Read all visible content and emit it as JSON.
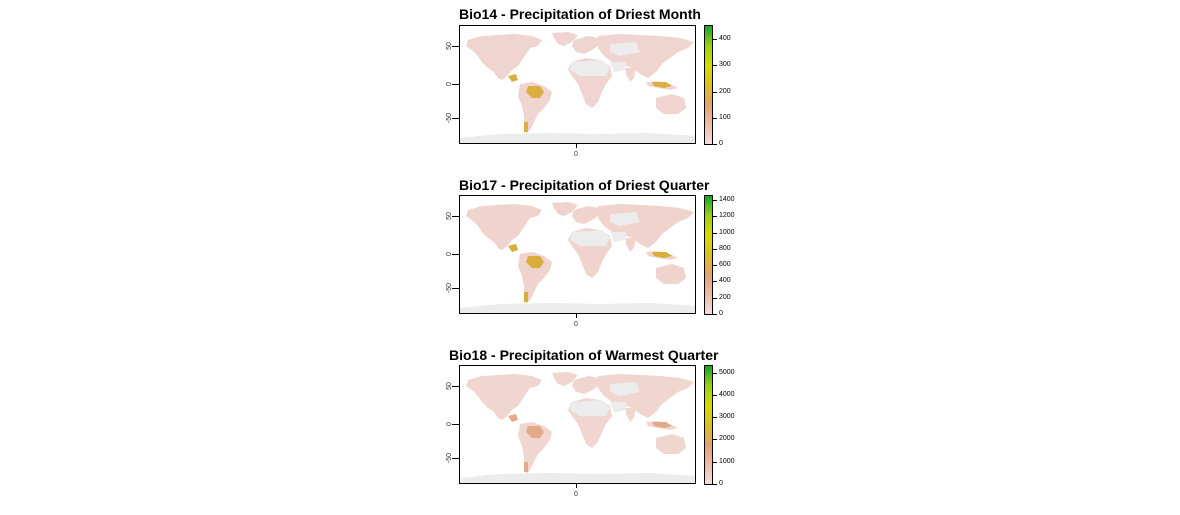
{
  "colors": {
    "ocean": "#ffffff",
    "land_nodata": "#ececec",
    "ramp": [
      "#f3dede",
      "#ebbba8",
      "#e3a272",
      "#d8c020",
      "#d4dd00",
      "#9ad015",
      "#16a52a"
    ]
  },
  "maps": [
    {
      "title": "Bio14 - Precipitation of Driest Month",
      "yticks": [
        "50",
        "0",
        "-50"
      ],
      "xticks": [
        "0"
      ],
      "legend": {
        "max": 450,
        "ticks": [
          "400",
          "300",
          "200",
          "100",
          "0"
        ],
        "values": [
          400,
          300,
          200,
          100,
          0
        ]
      }
    },
    {
      "title": "Bio17 - Precipitation of Driest Quarter",
      "yticks": [
        "50",
        "0",
        "-50"
      ],
      "xticks": [
        "0"
      ],
      "legend": {
        "max": 1450,
        "ticks": [
          "1400",
          "1200",
          "1000",
          "800",
          "600",
          "400",
          "200",
          "0"
        ],
        "values": [
          1400,
          1200,
          1000,
          800,
          600,
          400,
          200,
          0
        ]
      }
    },
    {
      "title": "Bio18 - Precipitation of Warmest Quarter",
      "yticks": [
        "50",
        "0",
        "-50"
      ],
      "xticks": [
        "0"
      ],
      "legend": {
        "max": 5300,
        "ticks": [
          "5000",
          "4000",
          "3000",
          "2000",
          "1000",
          "0"
        ],
        "values": [
          5000,
          4000,
          3000,
          2000,
          1000,
          0
        ]
      }
    }
  ]
}
